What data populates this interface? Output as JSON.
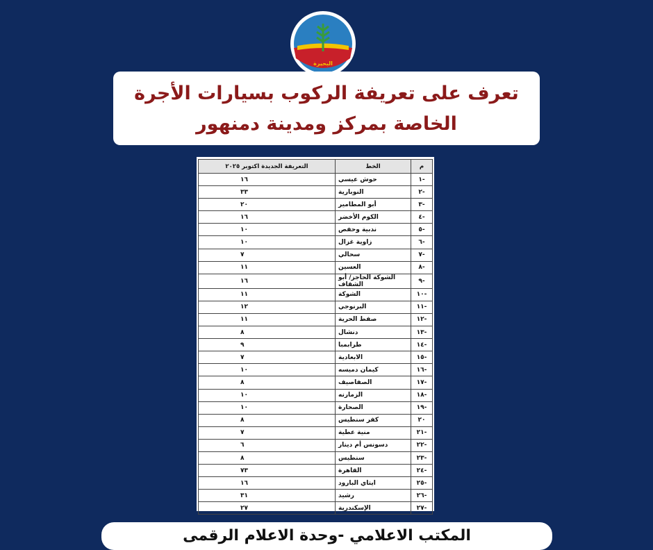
{
  "logo": {
    "text": "البحيرة"
  },
  "header": {
    "title_line1": "تعرف على تعريفة الركوب بسيارات الأجرة",
    "title_line2": "الخاصة بمركز ومدينة دمنهور"
  },
  "table": {
    "columns": [
      "م",
      "الخط",
      "التعريفة الجديدة اكتوبر ٢٠٢٥"
    ],
    "rows": [
      [
        "-١",
        "حوش عيسي",
        "١٦"
      ],
      [
        "-٢",
        "النوبارية",
        "٣٣"
      ],
      [
        "-٣",
        "أبو المطامير",
        "٢٠"
      ],
      [
        "-٤",
        "الكوم الأخضر",
        "١٦"
      ],
      [
        "-٥",
        "ندبية وحفص",
        "١٠"
      ],
      [
        "-٦",
        "زاوية غزال",
        "١٠"
      ],
      [
        "-٧",
        "سحالي",
        "٧"
      ],
      [
        "-٨",
        "العسين",
        "١١"
      ],
      [
        "-٩",
        "الشوكة الحاجز/ أبو الشقاف",
        "١٦"
      ],
      [
        "-١٠",
        "الشوكة",
        "١١"
      ],
      [
        "-١١",
        "البرنوجي",
        "١٢"
      ],
      [
        "-١٢",
        "صفط الحرية",
        "١١"
      ],
      [
        "-١٣",
        "دنشال",
        "٨"
      ],
      [
        "-١٤",
        "طرابمبا",
        "٩"
      ],
      [
        "-١٥",
        "الابعادية",
        "٧"
      ],
      [
        "-١٦",
        "كيمان دميسه",
        "١٠"
      ],
      [
        "-١٧",
        "الصفاصيف",
        "٨"
      ],
      [
        "-١٨",
        "الزمارنه",
        "١٠"
      ],
      [
        "-١٩",
        "الصحارة",
        "١٠"
      ],
      [
        "٢٠",
        "كفر سنطيس",
        "٨"
      ],
      [
        "-٢١",
        "منية عطية",
        "٧"
      ],
      [
        "-٢٢",
        "دسونس أم دينار",
        "٦"
      ],
      [
        "-٢٣",
        "سنطيس",
        "٨"
      ],
      [
        "-٢٤",
        "القاهرة",
        "٧٣"
      ],
      [
        "-٢٥",
        "ايتاي البارود",
        "١٦"
      ],
      [
        "-٢٦",
        "رشيد",
        "٣١"
      ],
      [
        "-٢٧",
        "الإسكندرية",
        "٢٧"
      ]
    ]
  },
  "footer": {
    "text": "المكتب الاعلامي -وحدة الاعلام الرقمى"
  }
}
